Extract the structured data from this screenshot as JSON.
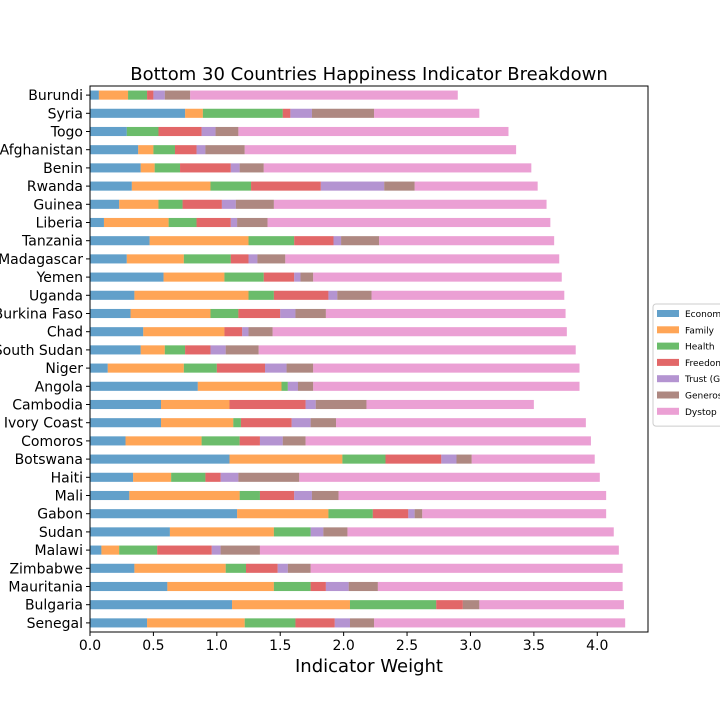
{
  "chart_data": {
    "type": "bar",
    "orientation": "horizontal",
    "stacked": true,
    "title": "Bottom 30 Countries Happiness Indicator Breakdown",
    "xlabel": "Indicator Weight",
    "ylabel": "",
    "xlim": [
      0,
      4.4
    ],
    "xticks": [
      0.0,
      0.5,
      1.0,
      1.5,
      2.0,
      2.5,
      3.0,
      3.5,
      4.0
    ],
    "xtick_labels": [
      "0.0",
      "0.5",
      "1.0",
      "1.5",
      "2.0",
      "2.5",
      "3.0",
      "3.5",
      "4.0"
    ],
    "grid": false,
    "legend_position": "center-right",
    "categories": [
      "Burundi",
      "Syria",
      "Togo",
      "Afghanistan",
      "Benin",
      "Rwanda",
      "Guinea",
      "Liberia",
      "Tanzania",
      "Madagascar",
      "Yemen",
      "Uganda",
      "Burkina Faso",
      "Chad",
      "South Sudan",
      "Niger",
      "Angola",
      "Cambodia",
      "Ivory Coast",
      "Comoros",
      "Botswana",
      "Haiti",
      "Mali",
      "Gabon",
      "Sudan",
      "Malawi",
      "Zimbabwe",
      "Mauritania",
      "Bulgaria",
      "Senegal"
    ],
    "series": [
      {
        "name": "Econom",
        "color": "#1f77b4",
        "values": [
          0.07,
          0.75,
          0.29,
          0.38,
          0.4,
          0.33,
          0.23,
          0.11,
          0.47,
          0.29,
          0.58,
          0.35,
          0.32,
          0.42,
          0.4,
          0.14,
          0.85,
          0.56,
          0.56,
          0.28,
          1.1,
          0.34,
          0.31,
          1.16,
          0.63,
          0.09,
          0.35,
          0.61,
          1.12,
          0.45
        ]
      },
      {
        "name": "Family",
        "color": "#ff7f0e",
        "values": [
          0.23,
          0.14,
          0.0,
          0.12,
          0.11,
          0.62,
          0.31,
          0.51,
          0.78,
          0.45,
          0.48,
          0.9,
          0.63,
          0.64,
          0.19,
          0.6,
          0.66,
          0.54,
          0.57,
          0.6,
          0.89,
          0.3,
          0.87,
          0.72,
          0.82,
          0.14,
          0.72,
          0.84,
          0.93,
          0.77
        ]
      },
      {
        "name": "Health",
        "color": "#2ca02c",
        "values": [
          0.15,
          0.63,
          0.25,
          0.17,
          0.2,
          0.32,
          0.19,
          0.22,
          0.36,
          0.37,
          0.31,
          0.2,
          0.22,
          0.0,
          0.16,
          0.26,
          0.05,
          0.0,
          0.06,
          0.3,
          0.34,
          0.27,
          0.16,
          0.35,
          0.29,
          0.3,
          0.16,
          0.29,
          0.68,
          0.4
        ]
      },
      {
        "name": "Freedom",
        "color": "#d62728",
        "values": [
          0.05,
          0.06,
          0.34,
          0.17,
          0.4,
          0.55,
          0.31,
          0.27,
          0.31,
          0.14,
          0.24,
          0.43,
          0.33,
          0.14,
          0.2,
          0.38,
          0.0,
          0.6,
          0.4,
          0.16,
          0.44,
          0.12,
          0.27,
          0.28,
          0.0,
          0.43,
          0.25,
          0.12,
          0.21,
          0.31
        ]
      },
      {
        "name": "Trust (G",
        "color": "#9467bd",
        "values": [
          0.09,
          0.17,
          0.11,
          0.07,
          0.07,
          0.5,
          0.11,
          0.05,
          0.06,
          0.07,
          0.05,
          0.07,
          0.12,
          0.05,
          0.12,
          0.17,
          0.08,
          0.08,
          0.15,
          0.18,
          0.12,
          0.14,
          0.14,
          0.05,
          0.1,
          0.07,
          0.08,
          0.18,
          0.0,
          0.12
        ]
      },
      {
        "name": "Generos",
        "color": "#8c564b",
        "values": [
          0.2,
          0.49,
          0.18,
          0.31,
          0.19,
          0.24,
          0.3,
          0.24,
          0.3,
          0.22,
          0.1,
          0.27,
          0.24,
          0.19,
          0.26,
          0.21,
          0.12,
          0.4,
          0.2,
          0.18,
          0.12,
          0.48,
          0.21,
          0.06,
          0.19,
          0.31,
          0.18,
          0.23,
          0.13,
          0.19
        ]
      },
      {
        "name": "Dystop",
        "color": "#e377c2",
        "values": [
          2.11,
          0.83,
          2.13,
          2.14,
          2.11,
          0.97,
          2.15,
          2.23,
          1.38,
          2.16,
          1.96,
          1.52,
          1.89,
          2.32,
          2.5,
          2.1,
          2.1,
          1.32,
          1.97,
          2.25,
          0.97,
          2.37,
          2.11,
          1.45,
          2.1,
          2.83,
          2.46,
          1.93,
          1.14,
          1.98
        ]
      }
    ]
  }
}
